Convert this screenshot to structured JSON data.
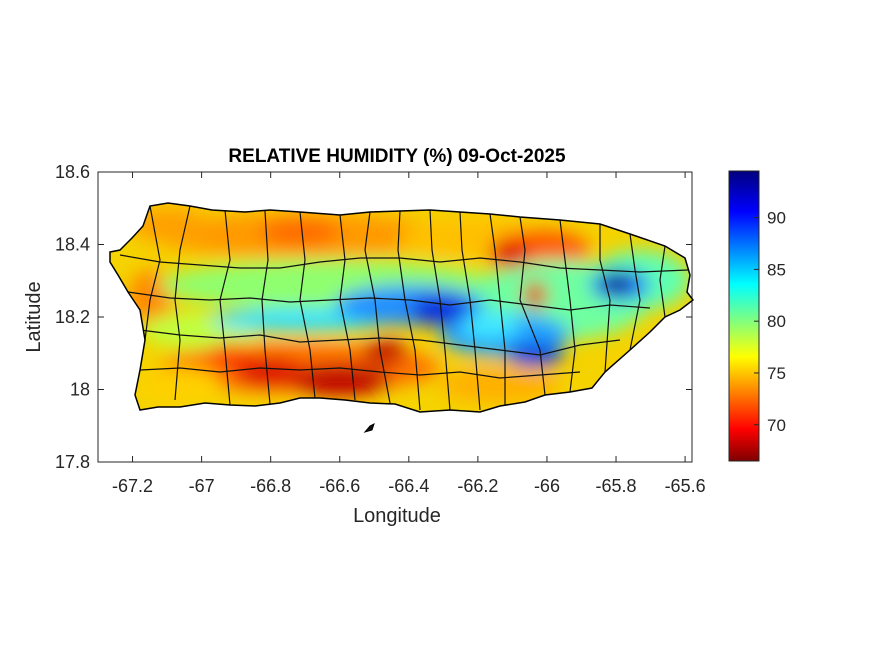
{
  "title": "RELATIVE HUMIDITY (%) 09-Oct-2025",
  "xlabel": "Longitude",
  "ylabel": "Latitude",
  "x_ticks": [
    -67.2,
    -67,
    -66.8,
    -66.6,
    -66.4,
    -66.2,
    -66,
    -65.8,
    -65.6
  ],
  "y_ticks": [
    17.8,
    18,
    18.2,
    18.4,
    18.6
  ],
  "xlim": [
    -67.3,
    -65.58
  ],
  "ylim": [
    17.8,
    18.6
  ],
  "colorbar": {
    "ticks": [
      70,
      75,
      80,
      85,
      90
    ],
    "range": [
      66.5,
      94.5
    ],
    "colormap": "jet"
  },
  "map_data": {
    "type": "filled-contour",
    "variable": "relative humidity (%)",
    "region": "Puerto Rico",
    "features": [
      {
        "kind": "humid-core",
        "lon": -65.81,
        "lat": 18.285,
        "value": 94
      },
      {
        "kind": "humid-band",
        "lon": -66.33,
        "lat": 18.2,
        "value": 91
      },
      {
        "kind": "humid-band",
        "lon": -66.08,
        "lat": 18.11,
        "value": 91
      },
      {
        "kind": "humid-band",
        "lon": -66.55,
        "lat": 18.17,
        "value": 88
      },
      {
        "kind": "humid-band",
        "lon": -66.8,
        "lat": 18.16,
        "value": 86
      },
      {
        "kind": "dry-core",
        "lon": -66.6,
        "lat": 18.01,
        "value": 67
      },
      {
        "kind": "dry-core",
        "lon": -66.48,
        "lat": 18.1,
        "value": 68
      },
      {
        "kind": "dry-core",
        "lon": -66.85,
        "lat": 18.03,
        "value": 69
      },
      {
        "kind": "dry-core",
        "lon": -66.15,
        "lat": 18.4,
        "value": 70
      },
      {
        "kind": "dry-core",
        "lon": -66.05,
        "lat": 18.25,
        "value": 70
      },
      {
        "kind": "dry-area",
        "lon": -66.75,
        "lat": 18.42,
        "value": 72
      },
      {
        "kind": "dry-area",
        "lon": -67.15,
        "lat": 18.22,
        "value": 73
      }
    ]
  }
}
